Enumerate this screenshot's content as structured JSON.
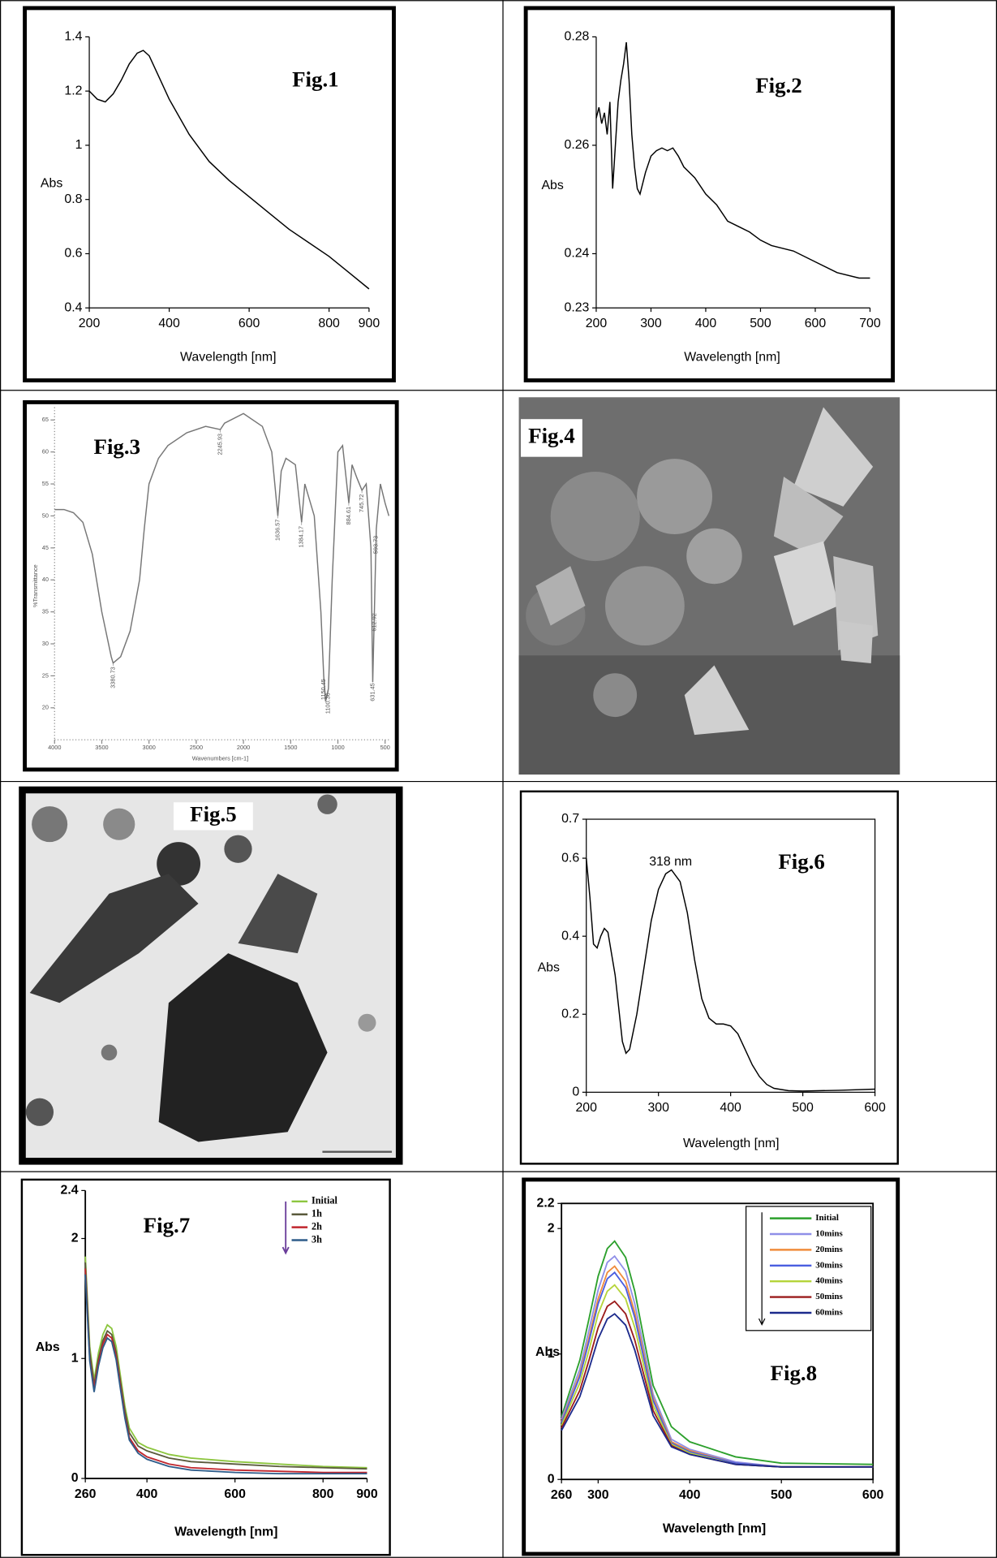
{
  "chart_data": [
    {
      "type": "line",
      "annotation": "Fig.1",
      "xlabel": "Wavelength [nm]",
      "ylabel": "Abs",
      "x": [
        200,
        220,
        240,
        260,
        280,
        300,
        320,
        335,
        350,
        375,
        400,
        450,
        500,
        550,
        600,
        650,
        700,
        750,
        800,
        850,
        900
      ],
      "series": [
        {
          "color": "#000000",
          "values": [
            1.2,
            1.17,
            1.16,
            1.19,
            1.24,
            1.3,
            1.34,
            1.35,
            1.33,
            1.25,
            1.17,
            1.04,
            0.94,
            0.87,
            0.81,
            0.75,
            0.69,
            0.64,
            0.59,
            0.53,
            0.47
          ]
        }
      ],
      "xlim": [
        200,
        900
      ],
      "ylim": [
        0.4,
        1.4
      ],
      "xticks": [
        200,
        400,
        600,
        800,
        900
      ],
      "yticks": [
        0.4,
        0.6,
        0.8,
        1,
        1.2,
        1.4
      ]
    },
    {
      "type": "line",
      "annotation": "Fig.2",
      "xlabel": "Wavelength [nm]",
      "ylabel": "Abs",
      "x": [
        200,
        205,
        210,
        215,
        220,
        225,
        230,
        235,
        240,
        245,
        250,
        255,
        260,
        265,
        270,
        275,
        280,
        290,
        300,
        310,
        320,
        330,
        340,
        350,
        360,
        380,
        400,
        420,
        440,
        460,
        480,
        500,
        520,
        540,
        560,
        600,
        640,
        680,
        700
      ],
      "series": [
        {
          "color": "#000000",
          "values": [
            0.265,
            0.267,
            0.264,
            0.266,
            0.262,
            0.268,
            0.252,
            0.26,
            0.268,
            0.272,
            0.275,
            0.279,
            0.272,
            0.262,
            0.256,
            0.252,
            0.251,
            0.255,
            0.258,
            0.259,
            0.2595,
            0.259,
            0.2595,
            0.258,
            0.256,
            0.254,
            0.251,
            0.249,
            0.246,
            0.245,
            0.244,
            0.2425,
            0.2415,
            0.241,
            0.2405,
            0.2385,
            0.2365,
            0.2355,
            0.2355
          ]
        }
      ],
      "xlim": [
        200,
        700
      ],
      "ylim": [
        0.23,
        0.28
      ],
      "xticks": [
        200,
        300,
        400,
        500,
        600,
        700
      ],
      "yticks": [
        0.23,
        0.24,
        0.26,
        0.28
      ]
    },
    {
      "type": "line",
      "annotation": "Fig.3",
      "xlabel": "Wavenumbers [cm-1]",
      "ylabel": "%Transmittance",
      "x": [
        4000,
        3900,
        3800,
        3700,
        3600,
        3500,
        3400,
        3380,
        3300,
        3200,
        3100,
        3050,
        3000,
        2900,
        2800,
        2600,
        2400,
        2245,
        2200,
        2000,
        1800,
        1700,
        1636,
        1600,
        1550,
        1450,
        1384,
        1350,
        1250,
        1180,
        1150,
        1130,
        1100,
        1060,
        1000,
        950,
        884,
        850,
        800,
        745,
        700,
        650,
        631,
        612,
        593,
        550,
        500,
        460
      ],
      "series": [
        {
          "color": "#777777",
          "values": [
            51,
            51,
            50.5,
            49,
            44,
            35,
            28,
            27,
            28,
            32,
            40,
            48,
            55,
            59,
            61,
            63,
            64,
            63.5,
            64.5,
            66,
            64,
            60,
            50,
            57,
            59,
            58,
            49,
            55,
            50,
            35,
            25,
            21,
            23,
            40,
            60,
            61,
            52,
            58,
            56,
            54,
            55,
            45,
            24,
            36,
            48,
            55,
            52,
            50
          ]
        }
      ],
      "peaks": [
        {
          "x": 3380.73,
          "label": "3380.73"
        },
        {
          "x": 2245.93,
          "label": "2245.93"
        },
        {
          "x": 1636.57,
          "label": "1636.57"
        },
        {
          "x": 1384.17,
          "label": "1384.17"
        },
        {
          "x": 1150.45,
          "label": "1150.45"
        },
        {
          "x": 1100.36,
          "label": "1100.36"
        },
        {
          "x": 884.61,
          "label": "884.61"
        },
        {
          "x": 745.72,
          "label": "745.72"
        },
        {
          "x": 631.45,
          "label": "631.45"
        },
        {
          "x": 612.92,
          "label": "612.92"
        },
        {
          "x": 593.73,
          "label": "593.73"
        }
      ],
      "xlim": [
        4000,
        460
      ],
      "ylim": [
        15,
        67
      ],
      "xticks": [
        4000,
        3500,
        3000,
        2500,
        2000,
        1500,
        1000,
        500
      ],
      "yticks": [
        20,
        25,
        30,
        35,
        40,
        45,
        50,
        55,
        60,
        65
      ]
    },
    {
      "type": "line",
      "annotation": "Fig.6",
      "peak_label": "318 nm",
      "xlabel": "Wavelength [nm]",
      "ylabel": "Abs",
      "x": [
        200,
        205,
        210,
        215,
        220,
        225,
        230,
        240,
        250,
        255,
        260,
        270,
        280,
        290,
        300,
        310,
        318,
        330,
        340,
        350,
        360,
        370,
        380,
        390,
        400,
        410,
        420,
        430,
        440,
        450,
        460,
        480,
        500,
        550,
        600
      ],
      "series": [
        {
          "color": "#000000",
          "values": [
            0.6,
            0.5,
            0.38,
            0.37,
            0.4,
            0.42,
            0.41,
            0.3,
            0.13,
            0.1,
            0.11,
            0.2,
            0.32,
            0.44,
            0.52,
            0.56,
            0.57,
            0.54,
            0.46,
            0.34,
            0.24,
            0.19,
            0.175,
            0.175,
            0.17,
            0.15,
            0.11,
            0.07,
            0.04,
            0.02,
            0.01,
            0.004,
            0.003,
            0.005,
            0.008
          ]
        }
      ],
      "xlim": [
        200,
        600
      ],
      "ylim": [
        0,
        0.7
      ],
      "xticks": [
        200,
        300,
        400,
        500,
        600
      ],
      "yticks": [
        0,
        0.2,
        0.4,
        0.6,
        0.7
      ]
    },
    {
      "type": "line",
      "annotation": "Fig.7",
      "xlabel": "Wavelength [nm]",
      "ylabel": "Abs",
      "x": [
        260,
        270,
        280,
        290,
        300,
        310,
        320,
        330,
        340,
        350,
        360,
        380,
        400,
        450,
        500,
        600,
        700,
        800,
        900
      ],
      "series": [
        {
          "name": "Initial",
          "color": "#8dc63f",
          "values": [
            1.85,
            1.1,
            0.82,
            1.05,
            1.2,
            1.28,
            1.25,
            1.1,
            0.85,
            0.6,
            0.42,
            0.3,
            0.26,
            0.2,
            0.17,
            0.14,
            0.12,
            0.1,
            0.09
          ]
        },
        {
          "name": "1h",
          "color": "#5a5a3c",
          "values": [
            1.8,
            1.05,
            0.78,
            1.0,
            1.15,
            1.23,
            1.2,
            1.05,
            0.8,
            0.56,
            0.38,
            0.27,
            0.23,
            0.17,
            0.14,
            0.12,
            0.1,
            0.09,
            0.08
          ]
        },
        {
          "name": "2h",
          "color": "#c0262d",
          "values": [
            1.75,
            1.0,
            0.75,
            0.97,
            1.12,
            1.2,
            1.17,
            1.02,
            0.77,
            0.52,
            0.34,
            0.23,
            0.18,
            0.12,
            0.09,
            0.07,
            0.06,
            0.05,
            0.05
          ]
        },
        {
          "name": "3h",
          "color": "#2e5c8a",
          "values": [
            1.7,
            0.98,
            0.72,
            0.94,
            1.09,
            1.17,
            1.14,
            0.99,
            0.74,
            0.5,
            0.32,
            0.21,
            0.16,
            0.1,
            0.07,
            0.05,
            0.04,
            0.04,
            0.04
          ]
        }
      ],
      "xlim": [
        260,
        900
      ],
      "ylim": [
        0,
        2.4
      ],
      "xticks": [
        260,
        400,
        600,
        800,
        900
      ],
      "yticks": [
        0,
        1,
        2,
        2.4
      ]
    },
    {
      "type": "line",
      "annotation": "Fig.8",
      "xlabel": "Wavelength [nm]",
      "ylabel": "Abs",
      "x": [
        260,
        280,
        290,
        300,
        310,
        318,
        330,
        340,
        350,
        360,
        380,
        400,
        450,
        500,
        600
      ],
      "series": [
        {
          "name": "Initial",
          "color": "#2ca02c",
          "values": [
            0.5,
            0.95,
            1.28,
            1.62,
            1.84,
            1.9,
            1.77,
            1.5,
            1.12,
            0.75,
            0.42,
            0.3,
            0.18,
            0.13,
            0.12
          ]
        },
        {
          "name": "10mins",
          "color": "#8f8fe8",
          "values": [
            0.48,
            0.88,
            1.19,
            1.51,
            1.73,
            1.78,
            1.66,
            1.4,
            1.04,
            0.68,
            0.32,
            0.24,
            0.14,
            0.1,
            0.1
          ]
        },
        {
          "name": "20mins",
          "color": "#f08c3c",
          "values": [
            0.46,
            0.84,
            1.13,
            1.44,
            1.65,
            1.7,
            1.58,
            1.33,
            0.99,
            0.65,
            0.3,
            0.23,
            0.13,
            0.1,
            0.1
          ]
        },
        {
          "name": "30mins",
          "color": "#4a5ee0",
          "values": [
            0.45,
            0.82,
            1.1,
            1.4,
            1.6,
            1.65,
            1.53,
            1.29,
            0.96,
            0.63,
            0.29,
            0.22,
            0.13,
            0.1,
            0.1
          ]
        },
        {
          "name": "40mins",
          "color": "#b5d43a",
          "values": [
            0.43,
            0.77,
            1.03,
            1.32,
            1.5,
            1.55,
            1.44,
            1.21,
            0.9,
            0.59,
            0.28,
            0.21,
            0.12,
            0.1,
            0.1
          ]
        },
        {
          "name": "50mins",
          "color": "#9b1c1c",
          "values": [
            0.41,
            0.71,
            0.95,
            1.21,
            1.38,
            1.42,
            1.32,
            1.11,
            0.83,
            0.55,
            0.27,
            0.2,
            0.12,
            0.1,
            0.1
          ]
        },
        {
          "name": "60mins",
          "color": "#1c2a8c",
          "values": [
            0.39,
            0.66,
            0.88,
            1.12,
            1.28,
            1.32,
            1.23,
            1.03,
            0.77,
            0.51,
            0.26,
            0.2,
            0.12,
            0.1,
            0.1
          ]
        }
      ],
      "xlim": [
        260,
        600
      ],
      "ylim": [
        0,
        2.2
      ],
      "xticks": [
        260,
        300,
        400,
        500,
        600
      ],
      "yticks": [
        0,
        1,
        2,
        2.2
      ]
    }
  ],
  "images": [
    {
      "label": "Fig.4"
    },
    {
      "label": "Fig.5"
    }
  ]
}
